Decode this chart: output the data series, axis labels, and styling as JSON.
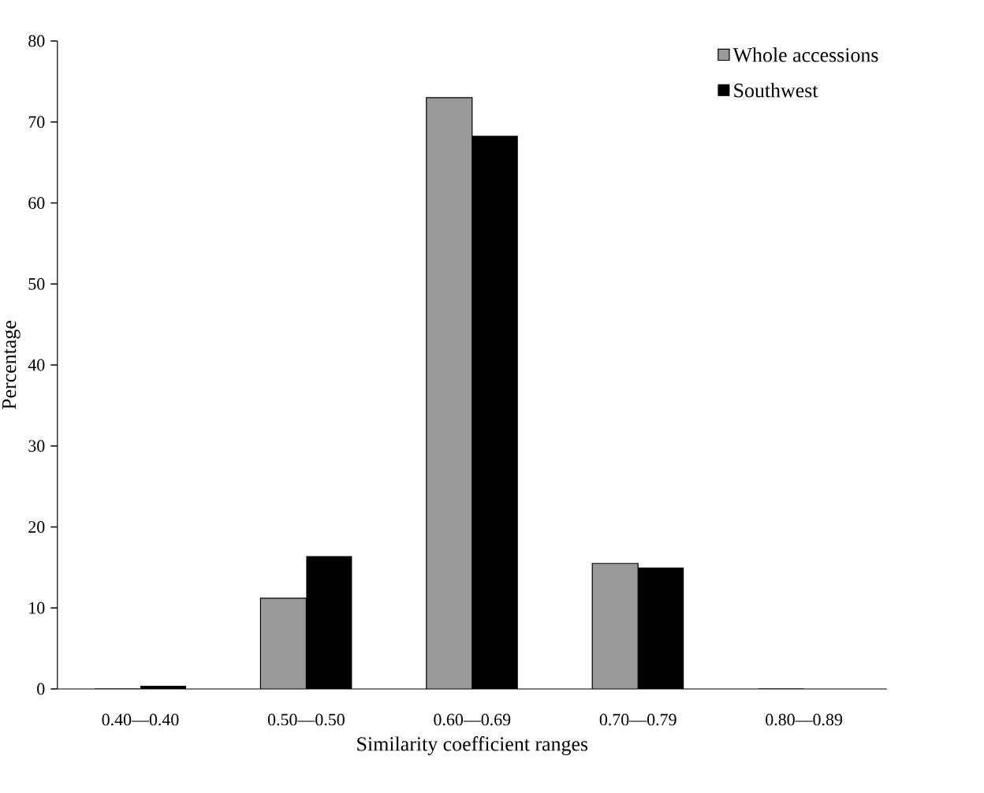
{
  "chart_data": {
    "type": "bar",
    "xlabel": "Similarity coefficient ranges",
    "ylabel": "Percentage",
    "categories": [
      "0.40—0.40",
      "0.50—0.50",
      "0.60—0.69",
      "0.70—0.79",
      "0.80—0.89"
    ],
    "series": [
      {
        "name": "Whole accessions",
        "color": "#9a9a9a",
        "values": [
          0,
          11.2,
          73.0,
          15.5,
          0
        ]
      },
      {
        "name": "Southwest",
        "color": "#000000",
        "values": [
          0.4,
          16.4,
          68.3,
          15.0,
          0
        ]
      }
    ],
    "ylim": [
      0,
      80
    ],
    "yticks": [
      0,
      10,
      20,
      30,
      40,
      50,
      60,
      70,
      80
    ],
    "grid": false,
    "legend": "top right"
  }
}
